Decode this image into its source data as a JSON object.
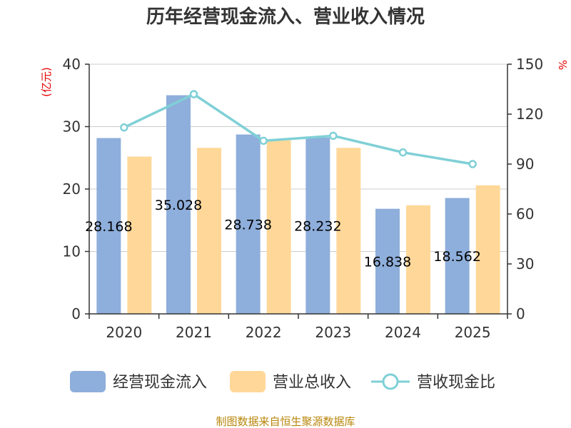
{
  "chart_data": {
    "type": "bar",
    "title": "历年经营现金流入、营业收入情况",
    "categories": [
      "2020",
      "2021",
      "2022",
      "2023",
      "2024",
      "2025"
    ],
    "series": [
      {
        "name": "经营现金流入",
        "type": "bar",
        "axis": "left",
        "color": "#8eaedb",
        "values": [
          28.168,
          35.028,
          28.738,
          28.232,
          16.838,
          18.562
        ],
        "labels": [
          "28.168",
          "35.028",
          "28.738",
          "28.232",
          "16.838",
          "18.562"
        ]
      },
      {
        "name": "营业总收入",
        "type": "bar",
        "axis": "left",
        "color": "#ffd899",
        "values": [
          25.2,
          26.6,
          27.8,
          26.6,
          17.4,
          20.6
        ]
      },
      {
        "name": "营收现金比",
        "type": "line",
        "axis": "right",
        "color": "#7fd0d6",
        "values": [
          112,
          132,
          104,
          107,
          97,
          90
        ]
      }
    ],
    "y_left": {
      "label": "(亿元)",
      "min": 0,
      "max": 40,
      "ticks": [
        0,
        10,
        20,
        30,
        40
      ]
    },
    "y_right": {
      "label": "%",
      "min": 0,
      "max": 150,
      "ticks": [
        0,
        30,
        60,
        90,
        120,
        150
      ]
    },
    "grid": true,
    "legend_position": "bottom"
  },
  "footer": {
    "source": "制图数据来自恒生聚源数据库"
  }
}
